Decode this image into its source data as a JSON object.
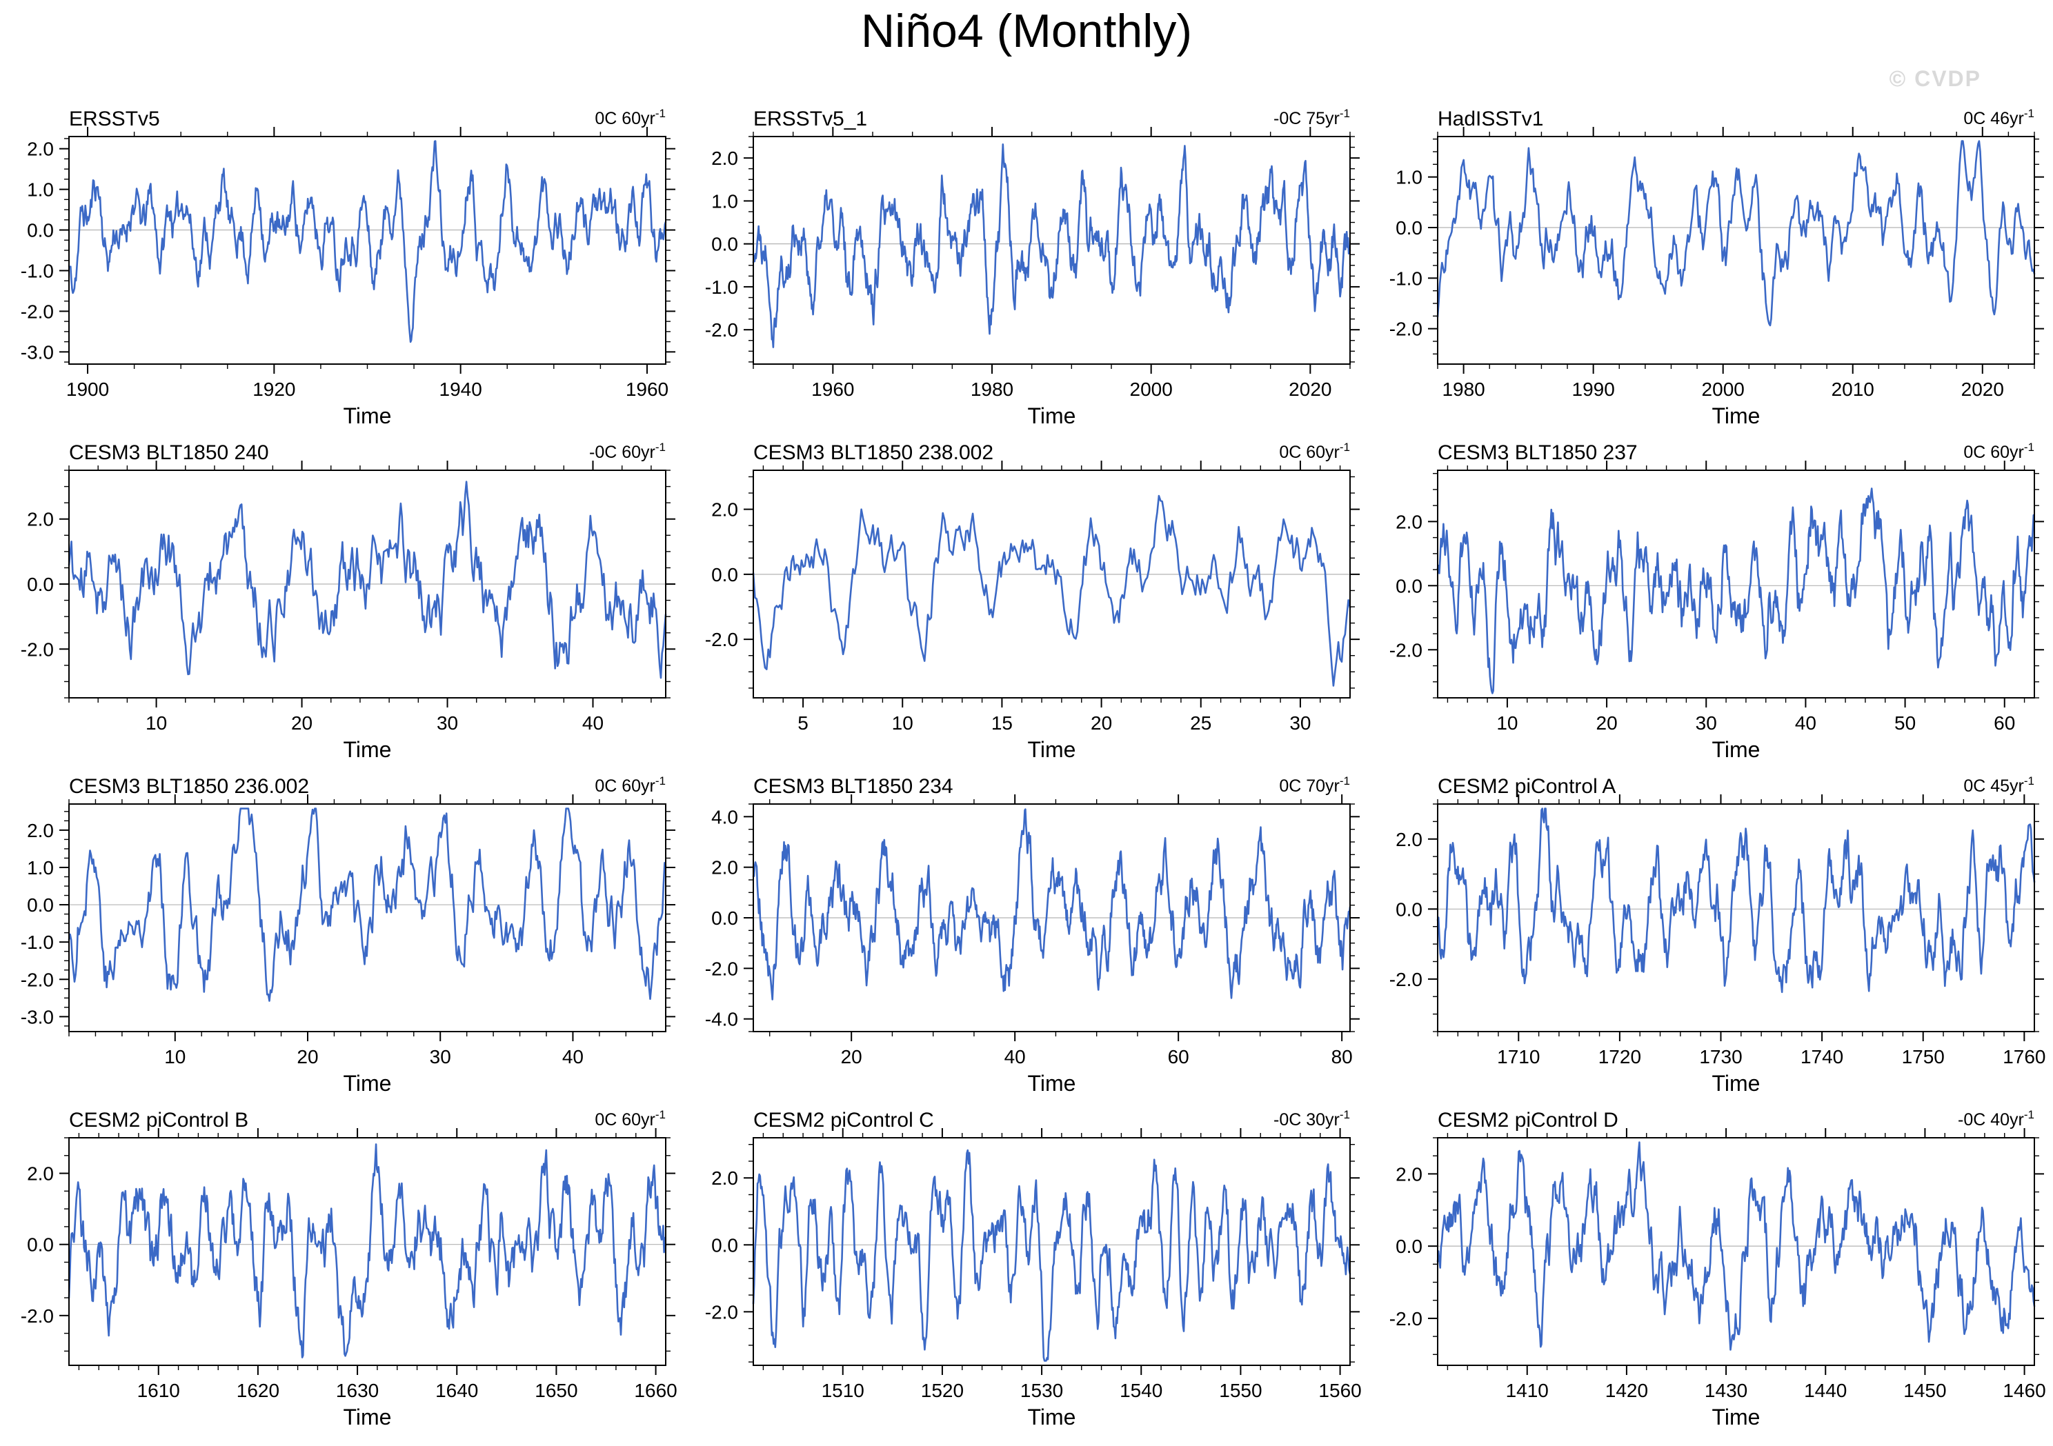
{
  "header": {
    "title": "Niño4 (Monthly)",
    "watermark": "© CVDP"
  },
  "colors": {
    "line": "#3b69c6",
    "zero_line": "#b3b3b3",
    "axis": "#000000",
    "watermark": "#d9d9d9",
    "background": "#ffffff"
  },
  "chart_data": {
    "type": "line",
    "title": "Niño4 (Monthly)",
    "xlabel": "Time",
    "legend": "none",
    "grid": false,
    "layout": {
      "rows": 4,
      "cols": 3
    },
    "panels": [
      {
        "title": "ERSSTv5",
        "trend_label": "0C 60yr",
        "trend_exponent": "-1",
        "xlabel": "Time",
        "x_range": [
          1898,
          1962
        ],
        "x_ticks": [
          1900,
          1920,
          1940,
          1960
        ],
        "x_minor_step": 5,
        "y_range": [
          -3.3,
          2.3
        ],
        "y_tick_values": [
          2,
          1,
          0,
          -1,
          -2,
          -3
        ],
        "y_tick_labels": [
          "2.0",
          "1.0",
          "0.0",
          "-1.0",
          "-2.0",
          "-3.0"
        ],
        "y_minor_step": 0.25,
        "zero_line": 0,
        "series": {
          "seed": 11,
          "n": 768,
          "sd": 0.72
        }
      },
      {
        "title": "ERSSTv5_1",
        "trend_label": "-0C 75yr",
        "trend_exponent": "-1",
        "xlabel": "Time",
        "x_range": [
          1950,
          2025
        ],
        "x_ticks": [
          1960,
          1980,
          2000,
          2020
        ],
        "x_minor_step": 5,
        "y_range": [
          -2.8,
          2.5
        ],
        "y_tick_values": [
          2,
          1,
          0,
          -1,
          -2
        ],
        "y_tick_labels": [
          "2.0",
          "1.0",
          "0.0",
          "-1.0",
          "-2.0"
        ],
        "y_minor_step": 0.25,
        "zero_line": 0,
        "series": {
          "seed": 22,
          "n": 900,
          "sd": 0.8
        }
      },
      {
        "title": "HadISSTv1",
        "trend_label": "0C 46yr",
        "trend_exponent": "-1",
        "xlabel": "Time",
        "x_range": [
          1978,
          2024
        ],
        "x_ticks": [
          1980,
          1990,
          2000,
          2010,
          2020
        ],
        "x_minor_step": 2,
        "y_range": [
          -2.7,
          1.8
        ],
        "y_tick_values": [
          1,
          0,
          -1,
          -2
        ],
        "y_tick_labels": [
          "1.0",
          "0.0",
          "-1.0",
          "-2.0"
        ],
        "y_minor_step": 0.25,
        "zero_line": 0,
        "series": {
          "seed": 33,
          "n": 552,
          "sd": 0.72
        }
      },
      {
        "title": "CESM3 BLT1850 240",
        "trend_label": "-0C 60yr",
        "trend_exponent": "-1",
        "xlabel": "Time",
        "x_range": [
          4,
          45
        ],
        "x_ticks": [
          10,
          20,
          30,
          40
        ],
        "x_minor_step": 2,
        "y_range": [
          -3.5,
          3.5
        ],
        "y_tick_values": [
          2,
          0,
          -2
        ],
        "y_tick_labels": [
          "2.0",
          "0.0",
          "-2.0"
        ],
        "y_minor_step": 0.5,
        "zero_line": 0,
        "series": {
          "seed": 44,
          "n": 492,
          "sd": 1.15
        }
      },
      {
        "title": "CESM3 BLT1850 238.002",
        "trend_label": "0C 60yr",
        "trend_exponent": "-1",
        "xlabel": "Time",
        "x_range": [
          2.5,
          32.5
        ],
        "x_ticks": [
          5,
          10,
          15,
          20,
          25,
          30
        ],
        "x_minor_step": 1,
        "y_range": [
          -3.8,
          3.2
        ],
        "y_tick_values": [
          2,
          0,
          -2
        ],
        "y_tick_labels": [
          "2.0",
          "0.0",
          "-2.0"
        ],
        "y_minor_step": 0.5,
        "zero_line": 0,
        "series": {
          "seed": 55,
          "n": 360,
          "sd": 1.1
        }
      },
      {
        "title": "CESM3 BLT1850 237",
        "trend_label": "0C 60yr",
        "trend_exponent": "-1",
        "xlabel": "Time",
        "x_range": [
          3,
          63
        ],
        "x_ticks": [
          10,
          20,
          30,
          40,
          50,
          60
        ],
        "x_minor_step": 2,
        "y_range": [
          -3.5,
          3.6
        ],
        "y_tick_values": [
          2,
          0,
          -2
        ],
        "y_tick_labels": [
          "2.0",
          "0.0",
          "-2.0"
        ],
        "y_minor_step": 0.5,
        "zero_line": 0,
        "series": {
          "seed": 66,
          "n": 720,
          "sd": 1.2
        }
      },
      {
        "title": "CESM3 BLT1850 236.002",
        "trend_label": "0C 60yr",
        "trend_exponent": "-1",
        "xlabel": "Time",
        "x_range": [
          2,
          47
        ],
        "x_ticks": [
          10,
          20,
          30,
          40
        ],
        "x_minor_step": 2,
        "y_range": [
          -3.4,
          2.7
        ],
        "y_tick_values": [
          2,
          1,
          0,
          -1,
          -2,
          -3
        ],
        "y_tick_labels": [
          "2.0",
          "1.0",
          "0.0",
          "-1.0",
          "-2.0",
          "-3.0"
        ],
        "y_minor_step": 0.25,
        "zero_line": 0,
        "series": {
          "seed": 77,
          "n": 540,
          "sd": 1.2
        }
      },
      {
        "title": "CESM3 BLT1850 234",
        "trend_label": "0C 70yr",
        "trend_exponent": "-1",
        "xlabel": "Time",
        "x_range": [
          8,
          81
        ],
        "x_ticks": [
          20,
          40,
          60,
          80
        ],
        "x_minor_step": 5,
        "y_range": [
          -4.5,
          4.5
        ],
        "y_tick_values": [
          4,
          2,
          0,
          -2,
          -4
        ],
        "y_tick_labels": [
          "4.0",
          "2.0",
          "0.0",
          "-2.0",
          "-4.0"
        ],
        "y_minor_step": 0.5,
        "zero_line": 0,
        "series": {
          "seed": 88,
          "n": 876,
          "sd": 1.4
        }
      },
      {
        "title": "CESM2 piControl A",
        "trend_label": "0C 45yr",
        "trend_exponent": "-1",
        "xlabel": "Time",
        "x_range": [
          1702,
          1761
        ],
        "x_ticks": [
          1710,
          1720,
          1730,
          1740,
          1750,
          1760
        ],
        "x_minor_step": 2,
        "y_range": [
          -3.5,
          3.0
        ],
        "y_tick_values": [
          2,
          0,
          -2
        ],
        "y_tick_labels": [
          "2.0",
          "0.0",
          "-2.0"
        ],
        "y_minor_step": 0.5,
        "zero_line": 0,
        "series": {
          "seed": 99,
          "n": 708,
          "sd": 1.15
        }
      },
      {
        "title": "CESM2 piControl B",
        "trend_label": "0C 60yr",
        "trend_exponent": "-1",
        "xlabel": "Time",
        "x_range": [
          1601,
          1661
        ],
        "x_ticks": [
          1610,
          1620,
          1630,
          1640,
          1650,
          1660
        ],
        "x_minor_step": 2,
        "y_range": [
          -3.4,
          3.0
        ],
        "y_tick_values": [
          2,
          0,
          -2
        ],
        "y_tick_labels": [
          "2.0",
          "0.0",
          "-2.0"
        ],
        "y_minor_step": 0.5,
        "zero_line": 0,
        "series": {
          "seed": 110,
          "n": 720,
          "sd": 1.1
        }
      },
      {
        "title": "CESM2 piControl C",
        "trend_label": "-0C 30yr",
        "trend_exponent": "-1",
        "xlabel": "Time",
        "x_range": [
          1501,
          1561
        ],
        "x_ticks": [
          1510,
          1520,
          1530,
          1540,
          1550,
          1560
        ],
        "x_minor_step": 2,
        "y_range": [
          -3.6,
          3.2
        ],
        "y_tick_values": [
          2,
          0,
          -2
        ],
        "y_tick_labels": [
          "2.0",
          "0.0",
          "-2.0"
        ],
        "y_minor_step": 0.5,
        "zero_line": 0,
        "series": {
          "seed": 121,
          "n": 708,
          "sd": 1.25
        }
      },
      {
        "title": "CESM2 piControl D",
        "trend_label": "-0C 40yr",
        "trend_exponent": "-1",
        "xlabel": "Time",
        "x_range": [
          1401,
          1461
        ],
        "x_ticks": [
          1410,
          1420,
          1430,
          1440,
          1450,
          1460
        ],
        "x_minor_step": 2,
        "y_range": [
          -3.3,
          3.0
        ],
        "y_tick_values": [
          2,
          0,
          -2
        ],
        "y_tick_labels": [
          "2.0",
          "0.0",
          "-2.0"
        ],
        "y_minor_step": 0.5,
        "zero_line": 0,
        "series": {
          "seed": 132,
          "n": 708,
          "sd": 1.15
        }
      }
    ]
  }
}
